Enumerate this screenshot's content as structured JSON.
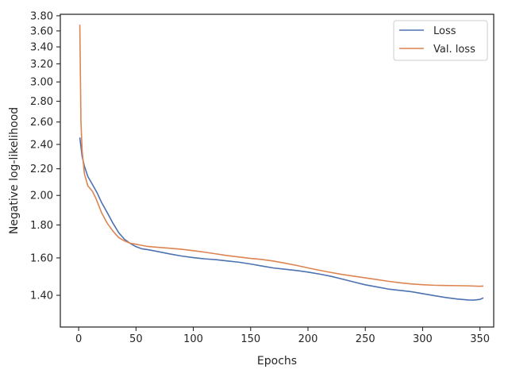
{
  "chart_data": {
    "type": "line",
    "title": "",
    "xlabel": "Epochs",
    "ylabel": "Negative log-likelihood",
    "xlim": [
      -16,
      362
    ],
    "ylim": [
      1.25,
      3.82
    ],
    "y_scale": "log",
    "x_ticks": [
      0,
      50,
      100,
      150,
      200,
      250,
      300,
      350
    ],
    "y_ticks": [
      1.4,
      1.6,
      1.8,
      2.0,
      2.2,
      2.4,
      2.6,
      2.8,
      3.0,
      3.2,
      3.4,
      3.6,
      3.8
    ],
    "y_tick_labels": [
      "1.40",
      "1.60",
      "1.80",
      "2.00",
      "2.20",
      "2.40",
      "2.60",
      "2.80",
      "3.00",
      "3.20",
      "3.40",
      "3.60",
      "3.80"
    ],
    "grid": false,
    "legend_position": "top-right",
    "series": [
      {
        "name": "Loss",
        "color": "#4c72b0",
        "x": [
          1,
          3,
          5,
          8,
          12,
          16,
          20,
          25,
          30,
          35,
          40,
          45,
          50,
          55,
          60,
          70,
          80,
          90,
          100,
          110,
          120,
          130,
          140,
          150,
          160,
          170,
          180,
          190,
          200,
          210,
          220,
          230,
          240,
          250,
          260,
          270,
          280,
          290,
          300,
          310,
          320,
          330,
          340,
          345,
          350,
          353
        ],
        "y": [
          2.46,
          2.3,
          2.22,
          2.14,
          2.08,
          2.02,
          1.95,
          1.88,
          1.81,
          1.75,
          1.71,
          1.685,
          1.67,
          1.655,
          1.645,
          1.635,
          1.625,
          1.615,
          1.605,
          1.595,
          1.587,
          1.578,
          1.572,
          1.565,
          1.557,
          1.548,
          1.54,
          1.53,
          1.518,
          1.506,
          1.495,
          1.483,
          1.471,
          1.458,
          1.446,
          1.432,
          1.422,
          1.414,
          1.405,
          1.398,
          1.392,
          1.386,
          1.38,
          1.38,
          1.378,
          1.385
        ]
      },
      {
        "name": "Val. loss",
        "color": "#dd8452",
        "x": [
          1,
          2,
          3,
          5,
          8,
          12,
          15,
          20,
          25,
          30,
          35,
          40,
          45,
          50,
          55,
          60,
          70,
          80,
          90,
          100,
          110,
          120,
          130,
          140,
          150,
          160,
          170,
          180,
          190,
          200,
          210,
          220,
          230,
          240,
          250,
          260,
          270,
          280,
          290,
          300,
          310,
          320,
          330,
          340,
          350,
          353
        ],
        "y": [
          3.68,
          2.6,
          2.35,
          2.16,
          2.07,
          2.03,
          1.98,
          1.88,
          1.81,
          1.76,
          1.72,
          1.7,
          1.685,
          1.678,
          1.673,
          1.669,
          1.662,
          1.655,
          1.648,
          1.64,
          1.632,
          1.624,
          1.615,
          1.607,
          1.598,
          1.59,
          1.58,
          1.568,
          1.557,
          1.545,
          1.533,
          1.521,
          1.509,
          1.498,
          1.488,
          1.479,
          1.471,
          1.465,
          1.46,
          1.456,
          1.452,
          1.449,
          1.447,
          1.446,
          1.445,
          1.446
        ]
      }
    ]
  }
}
